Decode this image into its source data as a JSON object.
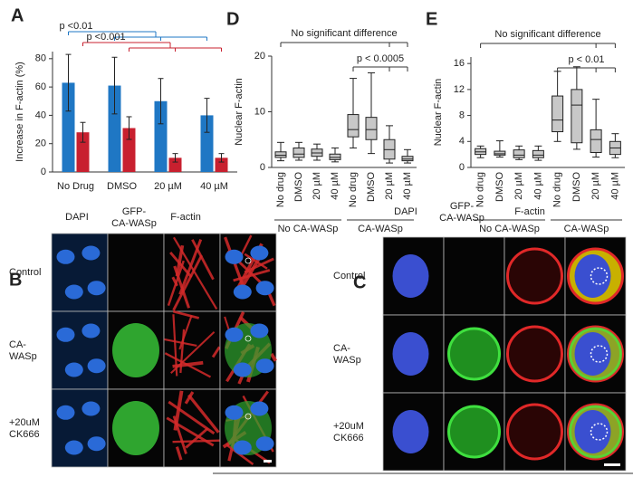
{
  "chart_data": [
    {
      "type": "bar",
      "panel": "A",
      "ylabel": "Increase in F-actin (%)",
      "categories": [
        "No Drug",
        "DMSO",
        "20 µM",
        "40 µM"
      ],
      "series": [
        {
          "color": "#1f77c4",
          "values": [
            63,
            61,
            50,
            40
          ],
          "errors": [
            20,
            20,
            16,
            12
          ]
        },
        {
          "color": "#c8202f",
          "values": [
            28,
            31,
            10,
            10
          ],
          "errors": [
            7,
            8,
            3,
            3
          ]
        }
      ],
      "ylim": [
        0,
        85
      ],
      "yticks": [
        0,
        20,
        40,
        60,
        80
      ],
      "annotations": [
        "p <0.01",
        "p <0.001"
      ]
    },
    {
      "type": "box",
      "panel": "D",
      "ylabel": "Nuclear F-actin",
      "categories": [
        "No drug",
        "DMSO",
        "20 µM",
        "40 µM",
        "No drug",
        "DMSO",
        "20 µM",
        "40 µM"
      ],
      "groups": [
        "No CA-WASp",
        "CA-WASp"
      ],
      "color": "#c8c8c8",
      "boxes": [
        {
          "min": 1.2,
          "q1": 1.8,
          "median": 2.2,
          "q3": 2.8,
          "max": 4.5
        },
        {
          "min": 1.3,
          "q1": 1.8,
          "median": 2.4,
          "q3": 3.5,
          "max": 4.5
        },
        {
          "min": 1.3,
          "q1": 2,
          "median": 2.6,
          "q3": 3.3,
          "max": 4.2
        },
        {
          "min": 1,
          "q1": 1.4,
          "median": 1.8,
          "q3": 2.4,
          "max": 3.5
        },
        {
          "min": 3.5,
          "q1": 5.5,
          "median": 6.8,
          "q3": 9.5,
          "max": 16
        },
        {
          "min": 2.5,
          "q1": 5,
          "median": 6.8,
          "q3": 9,
          "max": 17
        },
        {
          "min": 0.8,
          "q1": 1.5,
          "median": 3.2,
          "q3": 5,
          "max": 7.5
        },
        {
          "min": 0.8,
          "q1": 1.2,
          "median": 1.5,
          "q3": 2,
          "max": 3.2
        }
      ],
      "ylim": [
        0,
        20
      ],
      "yticks": [
        0,
        10,
        20
      ],
      "annotations": [
        "No significant difference",
        "p < 0.0005"
      ]
    },
    {
      "type": "box",
      "panel": "E",
      "ylabel": "Nuclear F-actin",
      "categories": [
        "No drug",
        "DMSO",
        "20 µM",
        "40 µM",
        "No drug",
        "DMSO",
        "20 µM",
        "40 µM"
      ],
      "groups": [
        "No CA-WASp",
        "CA-WASp"
      ],
      "color": "#c8c8c8",
      "boxes": [
        {
          "min": 1.5,
          "q1": 2,
          "median": 2.4,
          "q3": 2.9,
          "max": 3.3
        },
        {
          "min": 1.6,
          "q1": 1.9,
          "median": 2.1,
          "q3": 2.5,
          "max": 4.1
        },
        {
          "min": 1.2,
          "q1": 1.5,
          "median": 1.9,
          "q3": 2.7,
          "max": 3.3
        },
        {
          "min": 1.1,
          "q1": 1.5,
          "median": 1.9,
          "q3": 2.6,
          "max": 3.3
        },
        {
          "min": 4,
          "q1": 5.5,
          "median": 7.3,
          "q3": 11,
          "max": 14.8
        },
        {
          "min": 2.8,
          "q1": 3.8,
          "median": 9.6,
          "q3": 12,
          "max": 15.5
        },
        {
          "min": 1.6,
          "q1": 2.3,
          "median": 4.3,
          "q3": 5.8,
          "max": 10.5
        },
        {
          "min": 1.5,
          "q1": 2,
          "median": 3,
          "q3": 4,
          "max": 5.2
        }
      ],
      "ylim": [
        0,
        17
      ],
      "yticks": [
        0,
        4,
        8,
        12,
        16
      ],
      "annotations": [
        "No significant difference",
        "p < 0.01"
      ]
    }
  ],
  "image_panels": [
    {
      "panel": "B",
      "columns": [
        [
          "DAPI"
        ],
        [
          "GFP-",
          "CA-WASp"
        ],
        [
          "F-actin"
        ]
      ],
      "rows": [
        [
          "Control"
        ],
        [
          "CA-",
          "WASp"
        ],
        [
          "+20uM",
          "CK666"
        ]
      ]
    },
    {
      "panel": "C",
      "columns": [
        [
          "DAPI"
        ],
        [
          "GFP-",
          "CA-WASp"
        ],
        [
          "F-actin"
        ]
      ],
      "rows": [
        [
          "Control"
        ],
        [
          "CA-",
          "WASp"
        ],
        [
          "+20uM",
          "CK666"
        ]
      ]
    }
  ]
}
